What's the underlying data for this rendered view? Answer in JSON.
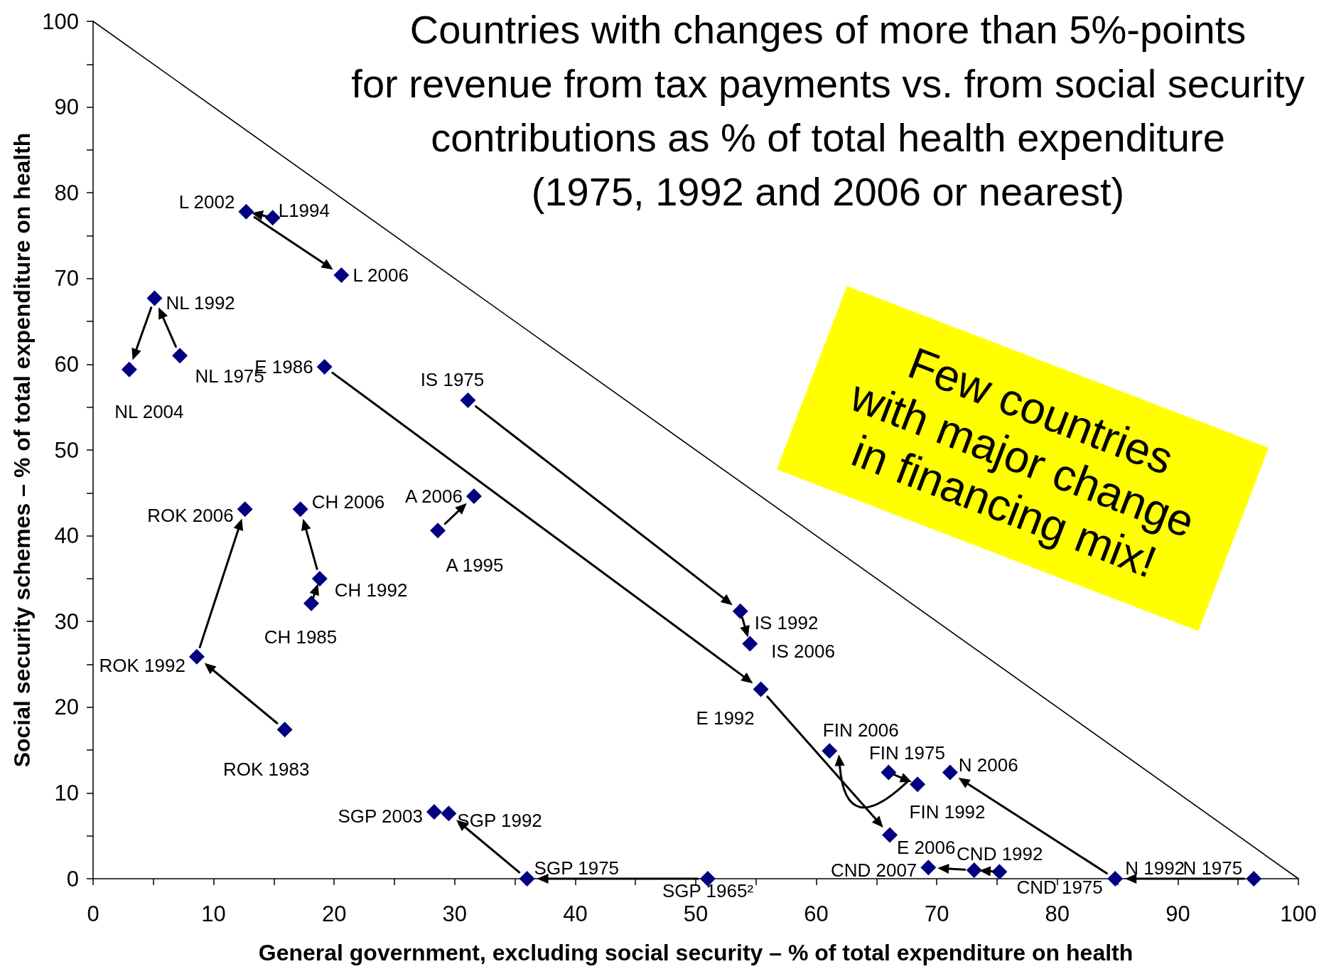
{
  "chart_data": {
    "type": "scatter",
    "title": "Countries with changes of more than 5%-points\nfor revenue from tax payments vs. from social security\ncontributions as % of total health expenditure\n(1975, 1992 and 2006 or nearest)",
    "xlabel": "General government, excluding social security – % of total expenditure on health",
    "ylabel": "Social security schemes – % of total expenditure on health",
    "annotations": [
      "Few countries\nwith major change\nin financing mix!"
    ],
    "xlim": [
      0,
      100
    ],
    "ylim": [
      0,
      100
    ],
    "xticks": [
      0,
      {
        "value": 5,
        "label": null
      },
      10,
      {
        "value": 15,
        "label": null
      },
      20,
      {
        "value": 25,
        "label": null
      },
      30,
      {
        "value": 35,
        "label": null
      },
      40,
      {
        "value": 45,
        "label": null
      },
      50,
      {
        "value": 55,
        "label": null
      },
      60,
      {
        "value": 65,
        "label": null
      },
      70,
      {
        "value": 75,
        "label": null
      },
      80,
      {
        "value": 85,
        "label": null
      },
      90,
      {
        "value": 95,
        "label": null
      },
      100
    ],
    "yticks": [
      0,
      {
        "value": 5,
        "label": null
      },
      10,
      {
        "value": 15,
        "label": null
      },
      20,
      {
        "value": 25,
        "label": null
      },
      30,
      {
        "value": 35,
        "label": null
      },
      40,
      {
        "value": 45,
        "label": null
      },
      50,
      {
        "value": 55,
        "label": null
      },
      60,
      {
        "value": 65,
        "label": null
      },
      70,
      {
        "value": 75,
        "label": null
      },
      80,
      {
        "value": 85,
        "label": null
      },
      90,
      {
        "value": 95,
        "label": null
      },
      100
    ],
    "marker": "diamond",
    "series": [
      {
        "color": "#000080",
        "x": [
          14.9,
          12.7,
          20.6
        ],
        "values": [
          77.1,
          77.8,
          70.4
        ],
        "value_labels": [
          "L1994",
          "L 2002",
          "L 2006"
        ]
      },
      {
        "color": "#000080",
        "x": [
          7.2,
          5.1,
          3.0
        ],
        "values": [
          61.0,
          67.7,
          59.4
        ],
        "value_labels": [
          "NL 1975",
          "NL 1992",
          "NL 2004"
        ]
      },
      {
        "color": "#000080",
        "x": [
          19.2,
          55.4,
          66.1
        ],
        "values": [
          59.7,
          22.1,
          5.1
        ],
        "value_labels": [
          "E 1986",
          "E 1992",
          "E 2006"
        ]
      },
      {
        "color": "#000080",
        "x": [
          31.1,
          53.7,
          54.5
        ],
        "values": [
          55.8,
          31.2,
          27.4
        ],
        "value_labels": [
          "IS 1975",
          "IS 1992",
          "IS 2006"
        ]
      },
      {
        "color": "#000080",
        "x": [
          28.6,
          31.6
        ],
        "values": [
          40.6,
          44.6
        ],
        "value_labels": [
          "A 1995",
          "A 2006"
        ]
      },
      {
        "color": "#000080",
        "x": [
          18.1,
          18.8,
          17.2
        ],
        "values": [
          32.1,
          35.0,
          43.1
        ],
        "value_labels": [
          "CH 1985",
          "CH 1992",
          "CH 2006"
        ]
      },
      {
        "color": "#000080",
        "x": [
          15.9,
          8.6,
          12.6
        ],
        "values": [
          17.4,
          25.9,
          43.1
        ],
        "value_labels": [
          "ROK 1983",
          "ROK 1992",
          "ROK 2006"
        ]
      },
      {
        "color": "#000080",
        "x": [
          66.0,
          68.4,
          61.1
        ],
        "values": [
          12.4,
          11.0,
          14.9
        ],
        "value_labels": [
          "FIN 1975",
          "FIN 1992",
          "FIN 2006"
        ]
      },
      {
        "color": "#000080",
        "x": [
          96.3,
          84.8,
          71.1
        ],
        "values": [
          0,
          0,
          12.4
        ],
        "value_labels": [
          "N 1975",
          "N 1992",
          "N 2006"
        ]
      },
      {
        "color": "#000080",
        "x": [
          75.2,
          73.1,
          69.3
        ],
        "values": [
          0.8,
          1.0,
          1.3
        ],
        "value_labels": [
          "CND 1975",
          "CND 1992",
          "CND 2007"
        ]
      },
      {
        "color": "#000080",
        "x": [
          51.0,
          36.0,
          29.5,
          28.3
        ],
        "values": [
          0,
          0,
          7.6,
          7.8
        ],
        "value_labels": [
          "SGP 1965²",
          "SGP 1975",
          "SGP 1992",
          "SGP 2003"
        ]
      },
      {
        "type": "line",
        "marker": "none",
        "color": "#000000",
        "x": [
          0,
          100
        ],
        "values": [
          100,
          0
        ]
      }
    ]
  }
}
